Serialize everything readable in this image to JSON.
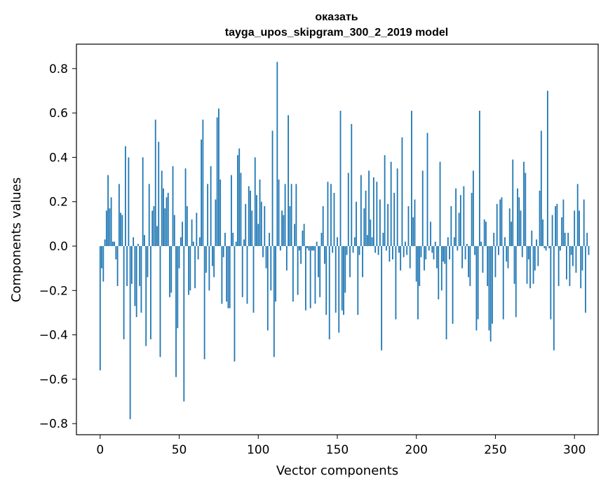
{
  "chart_data": {
    "type": "bar",
    "title_line1": "оказать",
    "title_line2": "tayga_upos_skipgram_300_2_2019 model",
    "xlabel": "Vector components",
    "ylabel": "Components values",
    "xlim": [
      -15,
      315
    ],
    "ylim": [
      -0.85,
      0.91
    ],
    "xticks": [
      0,
      50,
      100,
      150,
      200,
      250,
      300
    ],
    "xtick_labels": [
      "0",
      "50",
      "100",
      "150",
      "200",
      "250",
      "300"
    ],
    "yticks": [
      -0.8,
      -0.6,
      -0.4,
      -0.2,
      0.0,
      0.2,
      0.4,
      0.6,
      0.8
    ],
    "ytick_labels": [
      "−0.8",
      "−0.6",
      "−0.4",
      "−0.2",
      "0.0",
      "0.2",
      "0.4",
      "0.6",
      "0.8"
    ],
    "grid": false,
    "legend": "none",
    "bar_color": "#1f77b4",
    "values": [
      -0.56,
      -0.1,
      -0.16,
      0.03,
      0.16,
      0.32,
      0.17,
      0.22,
      0.02,
      0.02,
      -0.06,
      -0.18,
      0.28,
      0.15,
      0.14,
      -0.42,
      0.45,
      -0.18,
      0.4,
      -0.78,
      -0.17,
      0.04,
      -0.27,
      -0.32,
      0.01,
      -0.18,
      -0.3,
      0.4,
      0.05,
      -0.45,
      -0.14,
      0.28,
      -0.42,
      0.16,
      0.18,
      0.57,
      0.09,
      0.47,
      -0.5,
      0.34,
      0.26,
      0.17,
      0.22,
      0.24,
      -0.23,
      -0.21,
      0.36,
      0.14,
      -0.59,
      -0.37,
      -0.1,
      0.04,
      0.11,
      -0.7,
      0.35,
      0.18,
      -0.22,
      -0.2,
      0.12,
      0.02,
      -0.19,
      0.15,
      -0.06,
      0.04,
      0.48,
      0.57,
      -0.51,
      -0.12,
      0.28,
      -0.2,
      0.36,
      -0.09,
      -0.14,
      0.21,
      0.58,
      0.62,
      0.3,
      -0.26,
      -0.05,
      0.06,
      -0.25,
      -0.28,
      -0.28,
      0.32,
      0.06,
      -0.52,
      0.02,
      0.41,
      0.44,
      0.33,
      -0.23,
      0.03,
      0.19,
      -0.26,
      0.27,
      0.25,
      0.16,
      -0.3,
      0.4,
      0.23,
      0.1,
      0.3,
      0.2,
      -0.05,
      0.18,
      -0.1,
      -0.38,
      0.06,
      -0.2,
      0.52,
      -0.5,
      -0.25,
      0.83,
      0.3,
      -0.02,
      0.16,
      0.14,
      0.28,
      -0.11,
      0.59,
      0.18,
      0.28,
      -0.25,
      0.1,
      0.28,
      -0.22,
      -0.02,
      -0.08,
      0.07,
      0.1,
      -0.29,
      -0.01,
      -0.02,
      -0.28,
      -0.02,
      -0.02,
      -0.26,
      0.02,
      -0.14,
      -0.23,
      0.06,
      0.18,
      -0.08,
      -0.31,
      0.29,
      -0.42,
      0.28,
      -0.03,
      0.24,
      -0.3,
      0.04,
      -0.39,
      0.61,
      -0.29,
      -0.31,
      -0.21,
      -0.04,
      0.33,
      -0.14,
      0.55,
      -0.03,
      0.04,
      0.2,
      -0.31,
      -0.04,
      0.32,
      -0.14,
      0.17,
      0.25,
      0.05,
      0.34,
      0.12,
      0.04,
      0.31,
      -0.03,
      0.29,
      -0.04,
      0.21,
      -0.47,
      0.06,
      0.41,
      -0.02,
      0.19,
      -0.07,
      0.38,
      -0.06,
      0.24,
      -0.33,
      0.35,
      -0.03,
      -0.11,
      0.49,
      -0.05,
      0.02,
      -0.04,
      0.18,
      -0.1,
      0.61,
      0.13,
      0.21,
      -0.16,
      -0.33,
      -0.18,
      -0.05,
      0.34,
      -0.11,
      -0.06,
      0.51,
      -0.02,
      0.11,
      -0.03,
      -0.06,
      0.02,
      -0.1,
      -0.24,
      0.38,
      -0.2,
      -0.07,
      -0.08,
      -0.42,
      0.04,
      -0.06,
      0.18,
      -0.35,
      0.04,
      0.26,
      -0.02,
      0.15,
      0.23,
      -0.1,
      0.27,
      -0.06,
      0.01,
      -0.14,
      -0.18,
      0.24,
      0.34,
      -0.04,
      -0.38,
      -0.33,
      0.61,
      0.02,
      -0.12,
      0.12,
      0.11,
      -0.18,
      -0.38,
      -0.43,
      -0.35,
      0.06,
      -0.14,
      0.19,
      -0.04,
      0.21,
      0.22,
      -0.33,
      0.04,
      -0.07,
      -0.1,
      0.17,
      0.11,
      0.39,
      -0.17,
      -0.32,
      0.26,
      0.22,
      0.16,
      -0.05,
      0.38,
      0.33,
      -0.17,
      -0.06,
      -0.19,
      0.07,
      -0.17,
      -0.11,
      0.03,
      -0.09,
      0.25,
      0.52,
      0.12,
      -0.01,
      -0.02,
      0.7,
      -0.01,
      -0.33,
      0.14,
      -0.47,
      0.18,
      0.19,
      -0.18,
      -0.02,
      0.13,
      0.21,
      0.06,
      -0.15,
      0.06,
      -0.18,
      -0.04,
      -0.09,
      0.16,
      -0.12,
      0.28,
      0.16,
      -0.19,
      -0.11,
      0.21,
      -0.3,
      0.06,
      -0.04
    ]
  }
}
